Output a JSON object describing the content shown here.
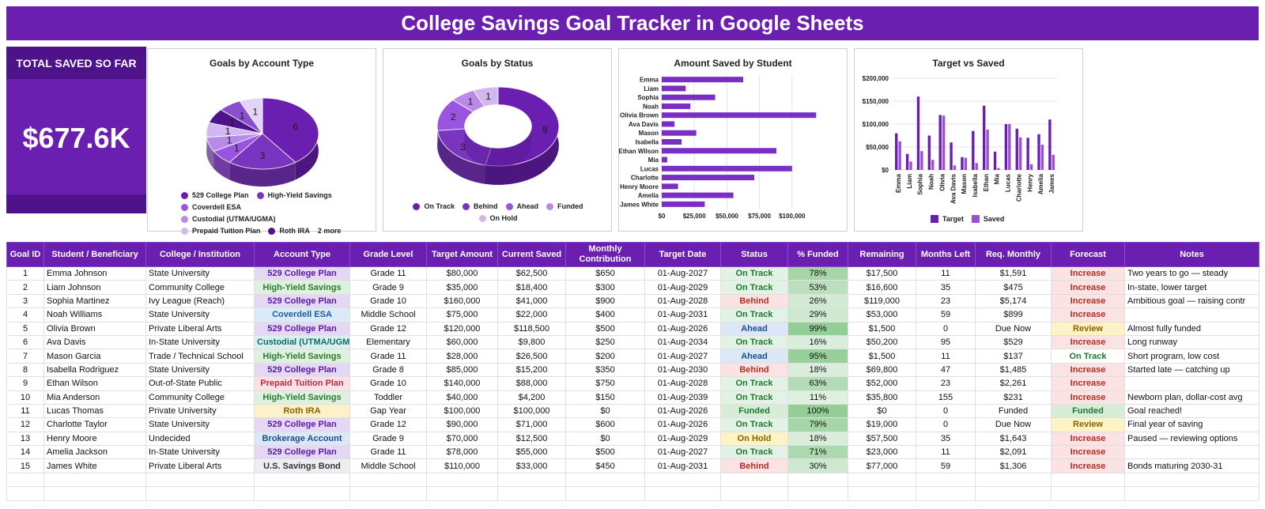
{
  "title": "College Savings Goal Tracker in Google Sheets",
  "kpi": {
    "label": "TOTAL SAVED SO FAR",
    "value": "$677.6K"
  },
  "charts": {
    "account_type": {
      "title": "Goals by Account Type",
      "legend": [
        "529 College Plan",
        "High-Yield Savings",
        "Coverdell ESA",
        "Custodial (UTMA/UGMA)",
        "Prepaid Tuition Plan",
        "Roth IRA",
        "2 more"
      ],
      "colors": [
        "#6a1fb0",
        "#7a35c0",
        "#9a55e0",
        "#b98ae8",
        "#d2b8f0",
        "#4e138a",
        "#8a4fcf",
        "#e3d4f7"
      ],
      "slice_labels": [
        "6",
        "3",
        "1",
        "1",
        "1",
        "1",
        "1",
        "1"
      ]
    },
    "status": {
      "title": "Goals by Status",
      "legend": [
        "On Track",
        "Behind",
        "Ahead",
        "Funded",
        "On Hold"
      ],
      "colors": [
        "#6a1fb0",
        "#7a35c0",
        "#9a55e0",
        "#b98ae8",
        "#d2b8f0"
      ],
      "slice_labels": [
        "8",
        "3",
        "2",
        "1",
        "1"
      ]
    },
    "saved_by_student": {
      "title": "Amount Saved by Student",
      "xticks": [
        "$0",
        "$25,000",
        "$50,000",
        "$75,000",
        "$100,000"
      ]
    },
    "target_vs_saved": {
      "title": "Target vs Saved",
      "yticks": [
        "$0",
        "$50,000",
        "$100,000",
        "$150,000",
        "$200,000"
      ],
      "categories": [
        "Emma",
        "Liam",
        "Sophia",
        "Noah",
        "Olivia",
        "Ava Davis",
        "Mason",
        "Isabella",
        "Ethan",
        "Mia",
        "Lucas",
        "Charlotte",
        "Henry",
        "Amelia",
        "James"
      ],
      "legend": [
        "Target",
        "Saved"
      ]
    }
  },
  "chart_data": [
    {
      "type": "pie",
      "title": "Goals by Account Type",
      "categories": [
        "529 College Plan",
        "High-Yield Savings",
        "Coverdell ESA",
        "Custodial (UTMA/UGMA)",
        "Prepaid Tuition Plan",
        "Roth IRA",
        "Brokerage Account",
        "U.S. Savings Bond"
      ],
      "values": [
        6,
        3,
        1,
        1,
        1,
        1,
        1,
        1
      ],
      "legend": "bottom"
    },
    {
      "type": "pie",
      "title": "Goals by Status",
      "categories": [
        "On Track",
        "Behind",
        "Ahead",
        "Funded",
        "On Hold"
      ],
      "values": [
        8,
        3,
        2,
        1,
        1
      ],
      "legend": "bottom"
    },
    {
      "type": "bar",
      "title": "Amount Saved by Student",
      "categories": [
        "Emma",
        "Liam",
        "Sophia",
        "Noah",
        "Olivia Brown",
        "Ava Davis",
        "Mason",
        "Isabella",
        "Ethan Wilson",
        "Mia",
        "Lucas",
        "Charlotte",
        "Henry Moore",
        "Amelia",
        "James White"
      ],
      "values": [
        62500,
        18400,
        41000,
        22000,
        118500,
        9800,
        26500,
        15200,
        88000,
        4200,
        100000,
        71000,
        12500,
        55000,
        33000
      ],
      "xlim": [
        0,
        125000
      ],
      "grid": true
    },
    {
      "type": "bar",
      "title": "Target vs Saved",
      "categories": [
        "Emma",
        "Liam",
        "Sophia",
        "Noah",
        "Olivia",
        "Ava Davis",
        "Mason",
        "Isabella",
        "Ethan",
        "Mia",
        "Lucas",
        "Charlotte",
        "Henry",
        "Amelia",
        "James"
      ],
      "series": [
        {
          "name": "Target",
          "values": [
            80000,
            35000,
            160000,
            75000,
            120000,
            60000,
            28000,
            85000,
            140000,
            40000,
            100000,
            90000,
            70000,
            78000,
            110000
          ]
        },
        {
          "name": "Saved",
          "values": [
            62500,
            18400,
            41000,
            22000,
            118500,
            9800,
            26500,
            15200,
            88000,
            4200,
            100000,
            71000,
            12500,
            55000,
            33000
          ]
        }
      ],
      "ylim": [
        0,
        200000
      ],
      "legend": "bottom"
    }
  ],
  "table": {
    "headers": [
      "Goal ID",
      "Student / Beneficiary",
      "College / Institution",
      "Account Type",
      "Grade Level",
      "Target Amount",
      "Current Saved",
      "Monthly Contribution",
      "Target Date",
      "Status",
      "% Funded",
      "Remaining",
      "Months Left",
      "Req. Monthly",
      "Forecast",
      "Notes"
    ],
    "rows": [
      [
        "1",
        "Emma Johnson",
        "State University",
        "529 College Plan",
        "Grade 11",
        "$80,000",
        "$62,500",
        "$650",
        "01-Aug-2027",
        "On Track",
        "78%",
        "$17,500",
        "11",
        "$1,591",
        "Increase",
        "Two years to go — steady"
      ],
      [
        "2",
        "Liam Johnson",
        "Community College",
        "High-Yield Savings",
        "Grade 9",
        "$35,000",
        "$18,400",
        "$300",
        "01-Aug-2029",
        "On Track",
        "53%",
        "$16,600",
        "35",
        "$475",
        "Increase",
        "In-state, lower target"
      ],
      [
        "3",
        "Sophia Martinez",
        "Ivy League (Reach)",
        "529 College Plan",
        "Grade 10",
        "$160,000",
        "$41,000",
        "$900",
        "01-Aug-2028",
        "Behind",
        "26%",
        "$119,000",
        "23",
        "$5,174",
        "Increase",
        "Ambitious goal — raising contr"
      ],
      [
        "4",
        "Noah Williams",
        "State University",
        "Coverdell ESA",
        "Middle School",
        "$75,000",
        "$22,000",
        "$400",
        "01-Aug-2031",
        "On Track",
        "29%",
        "$53,000",
        "59",
        "$899",
        "Increase",
        ""
      ],
      [
        "5",
        "Olivia Brown",
        "Private Liberal Arts",
        "529 College Plan",
        "Grade 12",
        "$120,000",
        "$118,500",
        "$500",
        "01-Aug-2026",
        "Ahead",
        "99%",
        "$1,500",
        "0",
        "Due Now",
        "Review",
        "Almost fully funded"
      ],
      [
        "6",
        "Ava Davis",
        "In-State University",
        "Custodial (UTMA/UGMA)",
        "Elementary",
        "$60,000",
        "$9,800",
        "$250",
        "01-Aug-2034",
        "On Track",
        "16%",
        "$50,200",
        "95",
        "$529",
        "Increase",
        "Long runway"
      ],
      [
        "7",
        "Mason Garcia",
        "Trade / Technical School",
        "High-Yield Savings",
        "Grade 11",
        "$28,000",
        "$26,500",
        "$200",
        "01-Aug-2027",
        "Ahead",
        "95%",
        "$1,500",
        "11",
        "$137",
        "On Track",
        "Short program, low cost"
      ],
      [
        "8",
        "Isabella Rodriguez",
        "State University",
        "529 College Plan",
        "Grade 8",
        "$85,000",
        "$15,200",
        "$350",
        "01-Aug-2030",
        "Behind",
        "18%",
        "$69,800",
        "47",
        "$1,485",
        "Increase",
        "Started late — catching up"
      ],
      [
        "9",
        "Ethan Wilson",
        "Out-of-State Public",
        "Prepaid Tuition Plan",
        "Grade 10",
        "$140,000",
        "$88,000",
        "$750",
        "01-Aug-2028",
        "On Track",
        "63%",
        "$52,000",
        "23",
        "$2,261",
        "Increase",
        ""
      ],
      [
        "10",
        "Mia Anderson",
        "Community College",
        "High-Yield Savings",
        "Toddler",
        "$40,000",
        "$4,200",
        "$150",
        "01-Aug-2039",
        "On Track",
        "11%",
        "$35,800",
        "155",
        "$231",
        "Increase",
        "Newborn plan, dollar-cost avg"
      ],
      [
        "11",
        "Lucas Thomas",
        "Private University",
        "Roth IRA",
        "Gap Year",
        "$100,000",
        "$100,000",
        "$0",
        "01-Aug-2026",
        "Funded",
        "100%",
        "$0",
        "0",
        "Funded",
        "Funded",
        "Goal reached!"
      ],
      [
        "12",
        "Charlotte Taylor",
        "State University",
        "529 College Plan",
        "Grade 12",
        "$90,000",
        "$71,000",
        "$600",
        "01-Aug-2026",
        "On Track",
        "79%",
        "$19,000",
        "0",
        "Due Now",
        "Review",
        "Final year of saving"
      ],
      [
        "13",
        "Henry Moore",
        "Undecided",
        "Brokerage Account",
        "Grade 9",
        "$70,000",
        "$12,500",
        "$0",
        "01-Aug-2029",
        "On Hold",
        "18%",
        "$57,500",
        "35",
        "$1,643",
        "Increase",
        "Paused — reviewing options"
      ],
      [
        "14",
        "Amelia Jackson",
        "In-State University",
        "529 College Plan",
        "Grade 11",
        "$78,000",
        "$55,000",
        "$500",
        "01-Aug-2027",
        "On Track",
        "71%",
        "$23,000",
        "11",
        "$2,091",
        "Increase",
        ""
      ],
      [
        "15",
        "James White",
        "Private Liberal Arts",
        "U.S. Savings Bond",
        "Middle School",
        "$110,000",
        "$33,000",
        "$450",
        "01-Aug-2031",
        "Behind",
        "30%",
        "$77,000",
        "59",
        "$1,306",
        "Increase",
        "Bonds maturing 2030-31"
      ]
    ],
    "account_colors": {
      "529 College Plan": {
        "bg": "#e4d8f5",
        "fg": "#5a1aa0"
      },
      "High-Yield Savings": {
        "bg": "#dff0df",
        "fg": "#2a7a2f"
      },
      "Coverdell ESA": {
        "bg": "#dbeaf8",
        "fg": "#1c5c9a"
      },
      "Custodial (UTMA/UGMA)": {
        "bg": "#d9f0ef",
        "fg": "#116b6a"
      },
      "Prepaid Tuition Plan": {
        "bg": "#fbe0e6",
        "fg": "#b42d4a"
      },
      "Roth IRA": {
        "bg": "#fdf1c7",
        "fg": "#8a6200"
      },
      "Brokerage Account": {
        "bg": "#dce8f7",
        "fg": "#1c4e8a"
      },
      "U.S. Savings Bond": {
        "bg": "#eceef2",
        "fg": "#333333"
      }
    }
  }
}
